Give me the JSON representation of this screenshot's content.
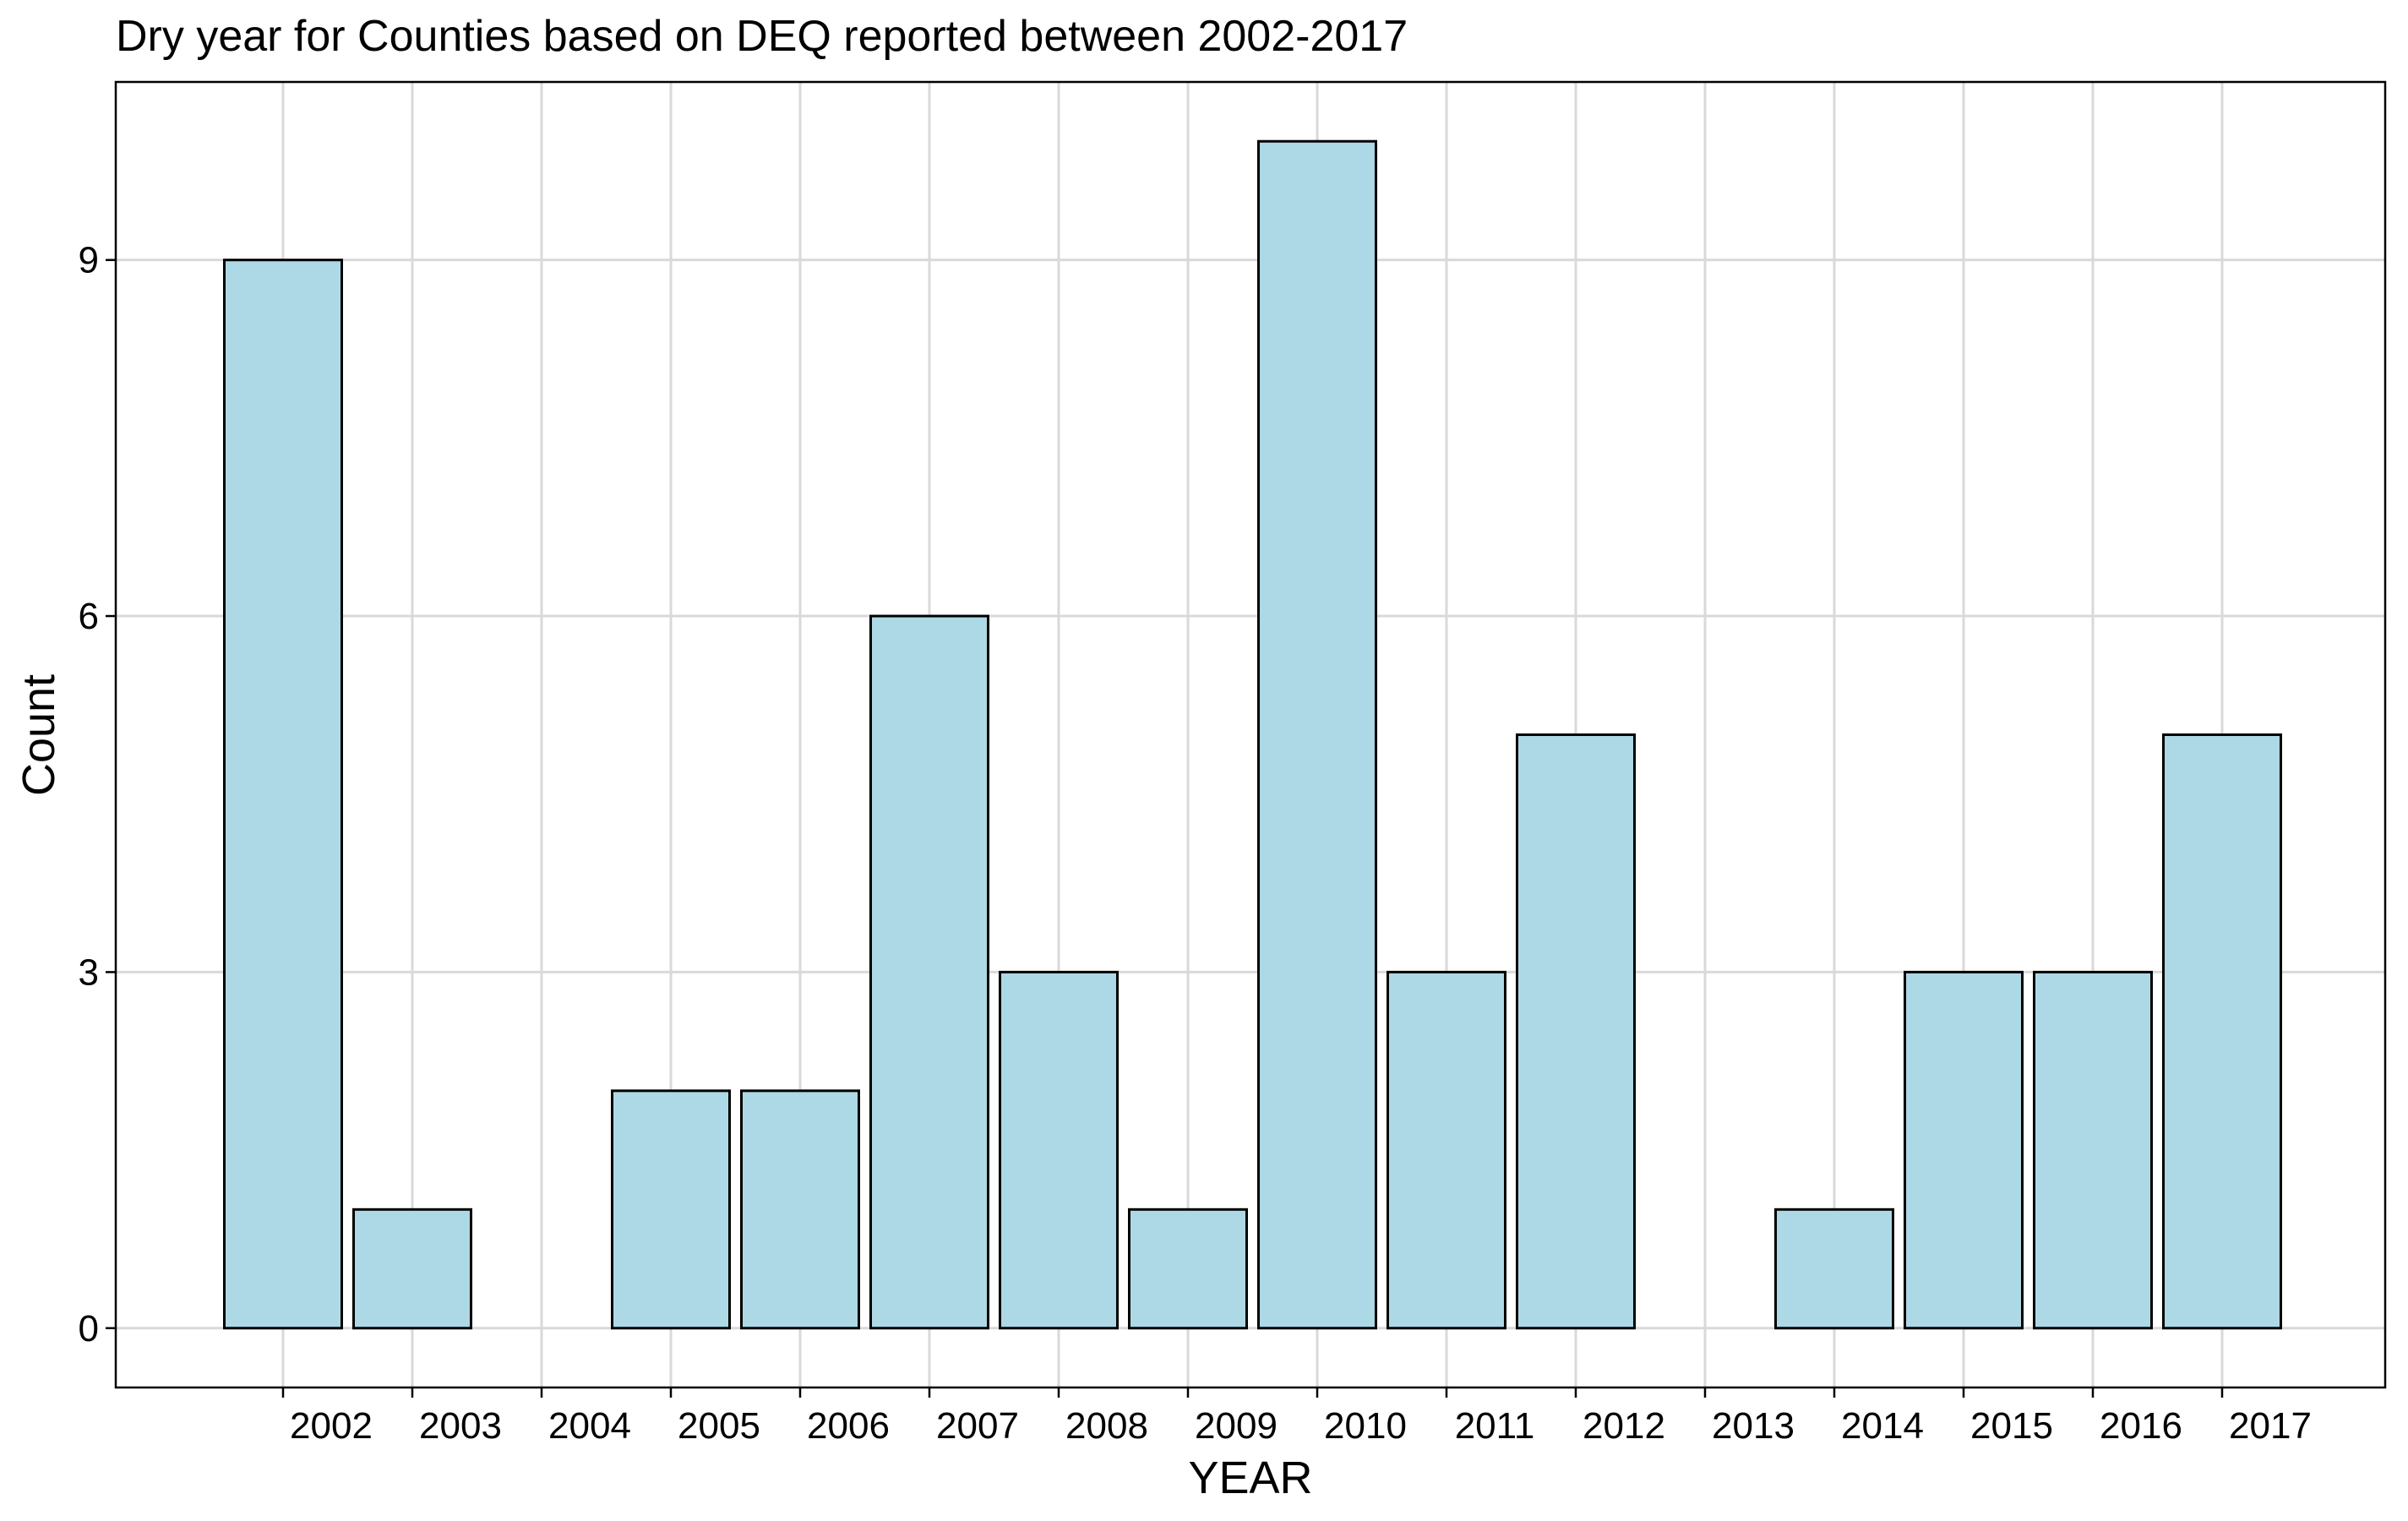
{
  "chart_data": {
    "type": "bar",
    "title": "Dry year for Counties based on DEQ reported between 2002-2017",
    "xlabel": "YEAR",
    "ylabel": "Count",
    "categories": [
      "2002",
      "2003",
      "2004",
      "2005",
      "2006",
      "2007",
      "2008",
      "2009",
      "2010",
      "2011",
      "2012",
      "2013",
      "2014",
      "2015",
      "2016",
      "2017"
    ],
    "bars": [
      {
        "category": "2002",
        "value": 9
      },
      {
        "category": "2003",
        "value": 1
      },
      {
        "category": "2005",
        "value": 2
      },
      {
        "category": "2006",
        "value": 2
      },
      {
        "category": "2007",
        "value": 6
      },
      {
        "category": "2008",
        "value": 3
      },
      {
        "category": "2009",
        "value": 1
      },
      {
        "category": "2010",
        "value": 10
      },
      {
        "category": "2011",
        "value": 3
      },
      {
        "category": "2012",
        "value": 5
      },
      {
        "category": "2014",
        "value": 1
      },
      {
        "category": "2015",
        "value": 3
      },
      {
        "category": "2016",
        "value": 3
      },
      {
        "category": "2017",
        "value": 5
      }
    ],
    "y_ticks": [
      "0",
      "3",
      "6",
      "9"
    ],
    "ylim": [
      -0.5,
      10.5
    ],
    "grid": true,
    "legend": "none",
    "colors": {
      "bar_fill": "#ADD8E6",
      "bar_stroke": "#000000",
      "grid": "#D9D9D9",
      "panel_border": "#000000"
    }
  }
}
